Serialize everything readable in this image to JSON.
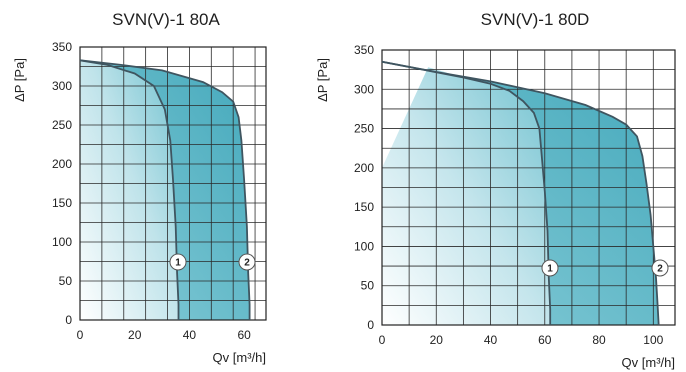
{
  "chart_data": [
    {
      "type": "line",
      "title": "SVN(V)-1 80A",
      "xlabel": "Qv [m³/h]",
      "ylabel": "ΔP [Pa]",
      "xlim": [
        0,
        68
      ],
      "ylim": [
        0,
        350
      ],
      "x_ticks": [
        "0",
        "20",
        "40",
        "60"
      ],
      "y_ticks": [
        "0",
        "50",
        "100",
        "150",
        "200",
        "250",
        "300",
        "350"
      ],
      "grid": true,
      "series": [
        {
          "name": "1",
          "x": [
            0,
            10,
            20,
            27,
            31,
            33,
            34,
            35,
            35.5,
            36,
            36
          ],
          "y": [
            333,
            327,
            316,
            300,
            270,
            230,
            180,
            120,
            60,
            20,
            0
          ]
        },
        {
          "name": "2",
          "x": [
            0,
            15,
            30,
            45,
            52,
            56,
            58,
            59,
            60,
            61,
            61.5,
            62,
            62
          ],
          "y": [
            333,
            327,
            320,
            305,
            292,
            280,
            260,
            230,
            180,
            120,
            60,
            20,
            0
          ]
        }
      ]
    },
    {
      "type": "line",
      "title": "SVN(V)-1 80D",
      "xlabel": "Qv [m³/h]",
      "ylabel": "ΔP [Pa]",
      "xlim": [
        0,
        108
      ],
      "ylim": [
        0,
        350
      ],
      "x_ticks": [
        "0",
        "20",
        "40",
        "60",
        "80",
        "100"
      ],
      "y_ticks": [
        "0",
        "50",
        "100",
        "150",
        "200",
        "250",
        "300",
        "350"
      ],
      "grid": true,
      "series": [
        {
          "name": "1",
          "x": [
            0,
            15,
            30,
            40,
            47,
            52,
            56,
            58,
            59,
            60,
            61,
            61.5,
            62,
            62
          ],
          "y": [
            335,
            325,
            315,
            307,
            298,
            285,
            270,
            250,
            210,
            170,
            120,
            60,
            20,
            0
          ]
        },
        {
          "name": "2",
          "x": [
            0,
            20,
            40,
            60,
            75,
            85,
            90,
            94,
            96,
            97.5,
            99,
            100,
            101,
            101.5,
            102
          ],
          "y": [
            335,
            322,
            310,
            295,
            280,
            265,
            255,
            240,
            215,
            180,
            140,
            100,
            60,
            30,
            0
          ]
        }
      ]
    }
  ]
}
